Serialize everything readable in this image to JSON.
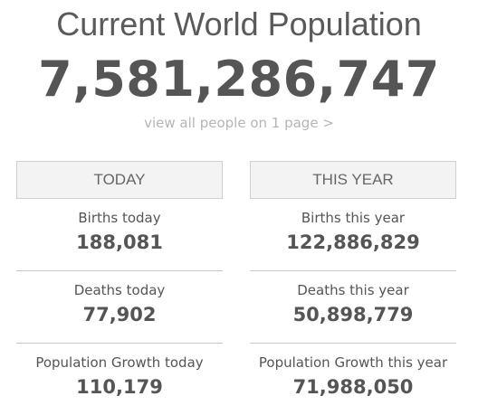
{
  "header": {
    "title": "Current World Population",
    "population": "7,581,286,747",
    "link": "view all people on 1 page >"
  },
  "columns": [
    {
      "heading": "TODAY",
      "items": [
        {
          "label": "Births today",
          "value": "188,081"
        },
        {
          "label": "Deaths today",
          "value": "77,902"
        },
        {
          "label": "Population Growth today",
          "value": "110,179"
        }
      ]
    },
    {
      "heading": "THIS YEAR",
      "items": [
        {
          "label": "Births this year",
          "value": "122,886,829"
        },
        {
          "label": "Deaths this year",
          "value": "50,898,779"
        },
        {
          "label": "Population Growth this year",
          "value": "71,988,050"
        }
      ]
    }
  ]
}
